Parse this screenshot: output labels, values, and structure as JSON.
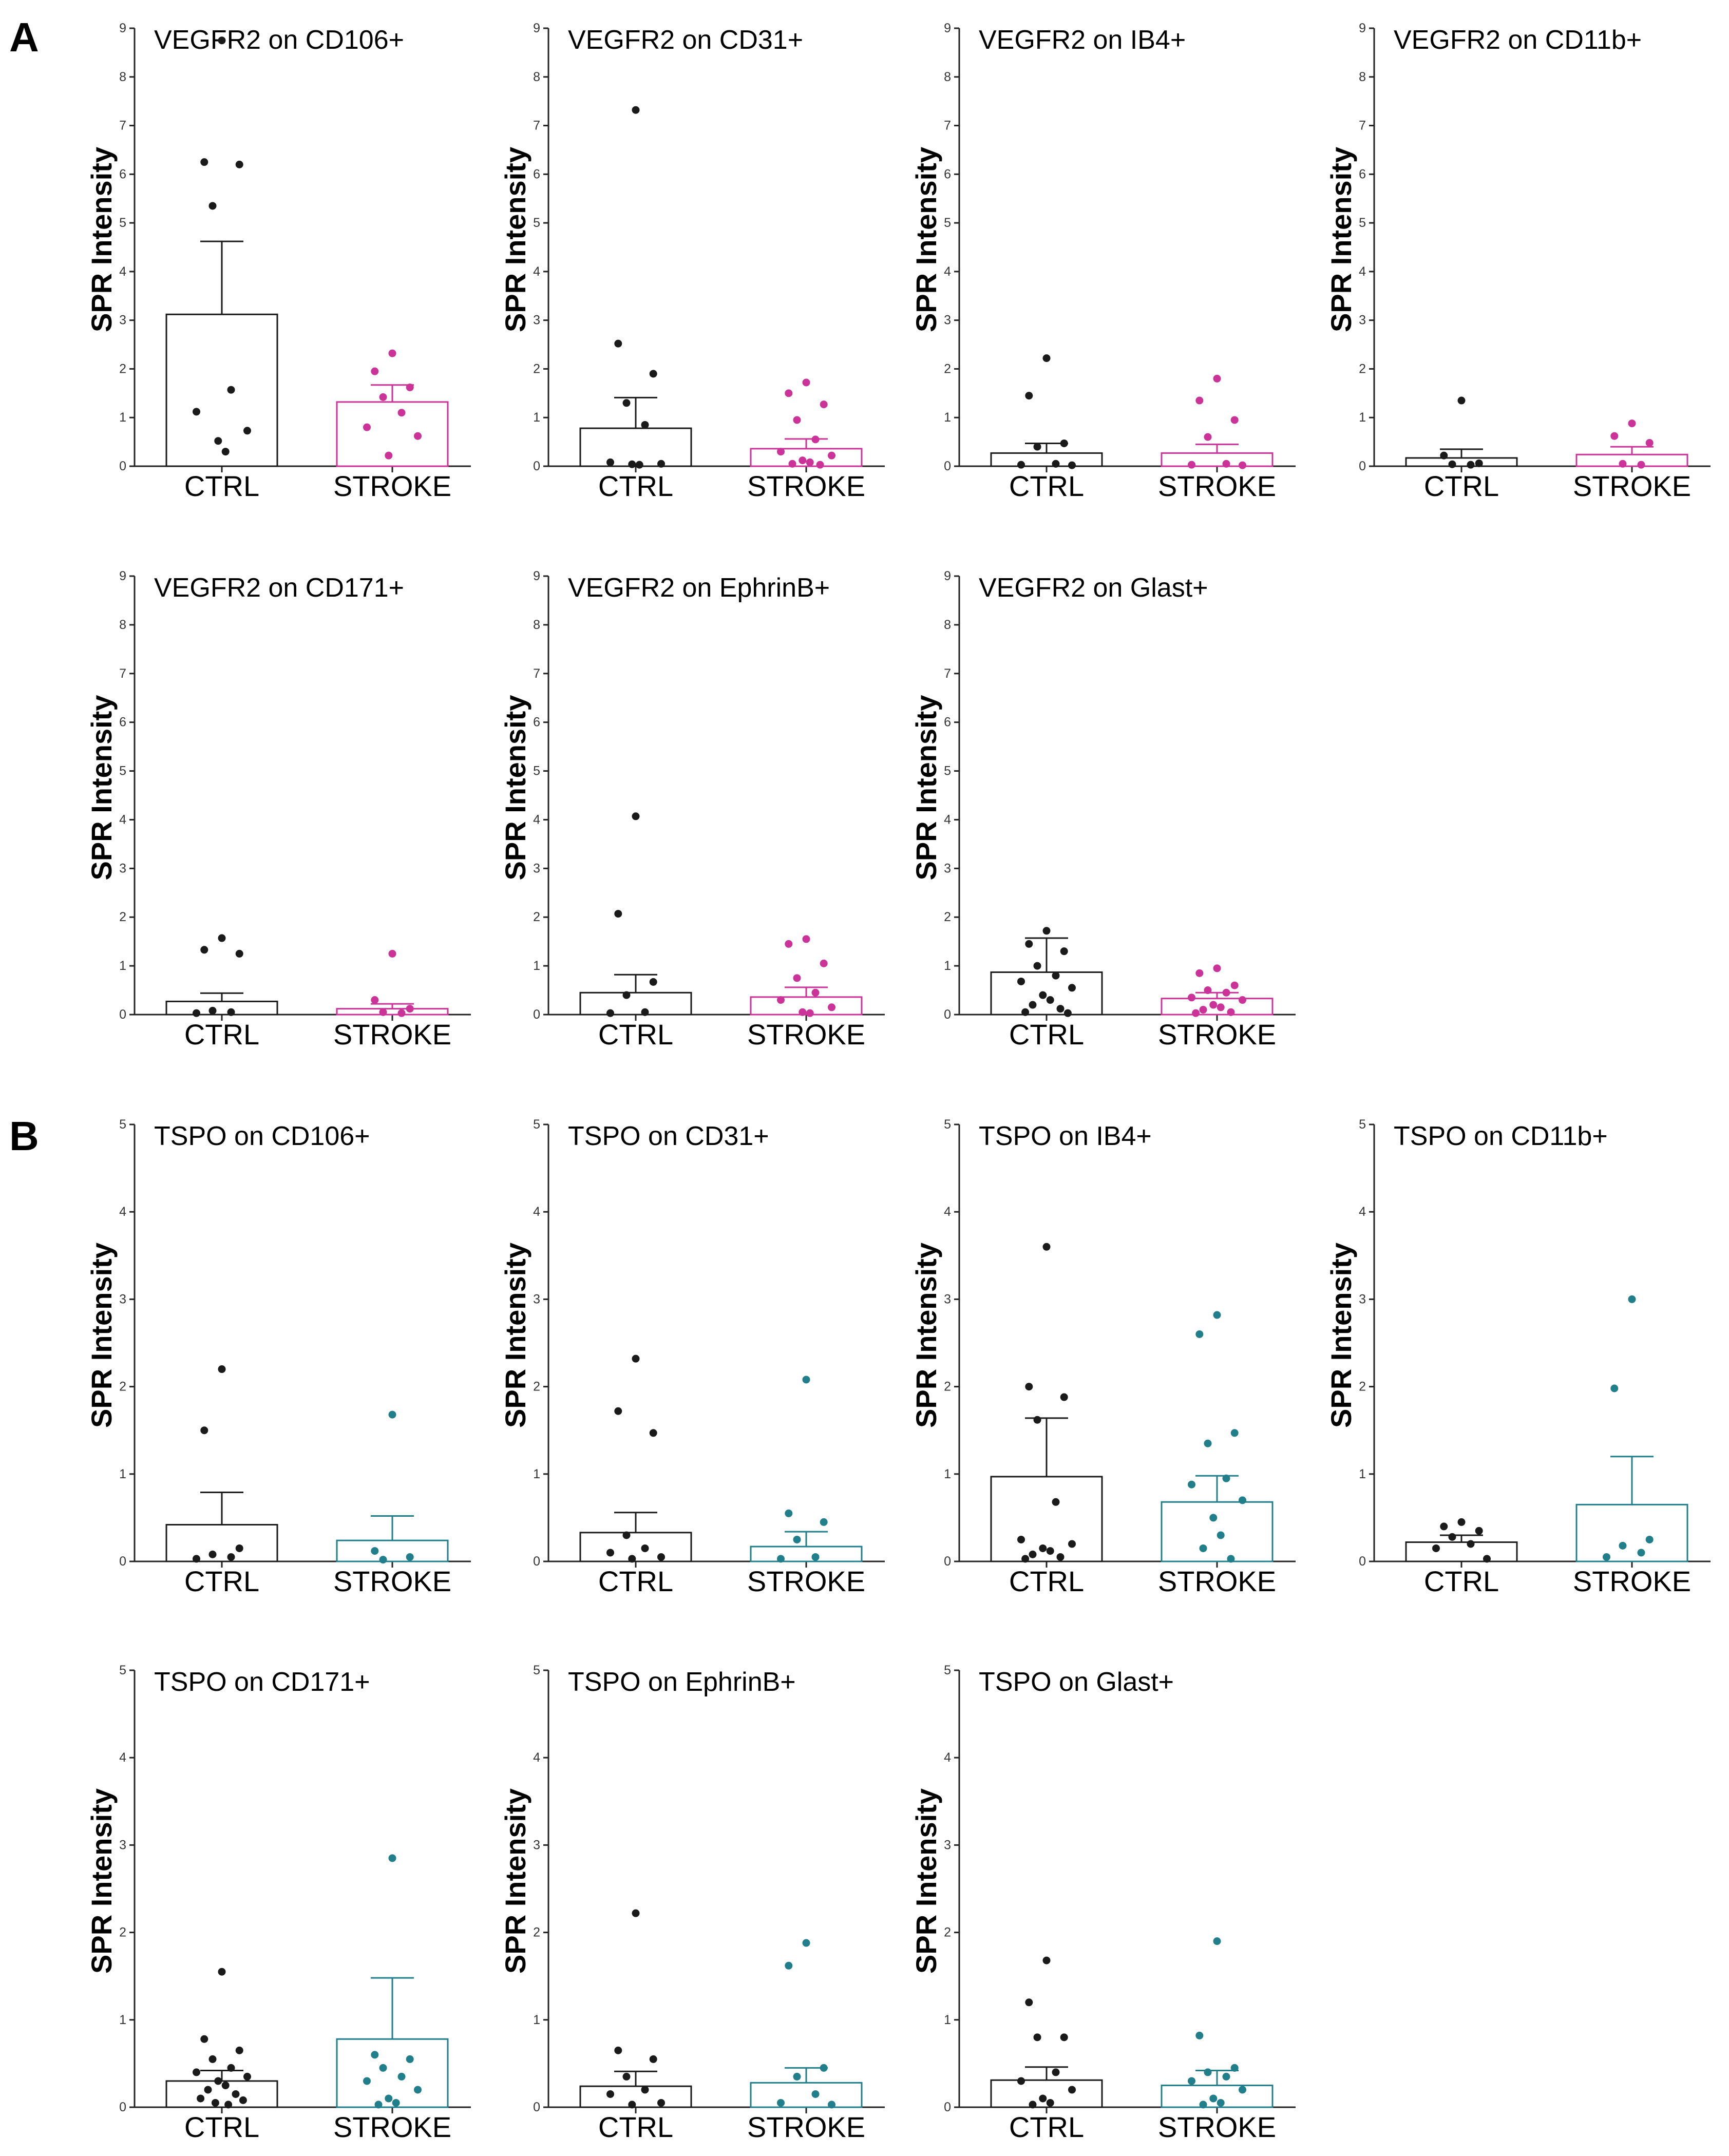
{
  "figure": {
    "panel_labels": [
      "A",
      "B"
    ],
    "colors": {
      "ctrl": "#1a1a1a",
      "vegfr2_stroke": "#cc3399",
      "tspo_stroke": "#217f8c",
      "axis": "#222222"
    }
  },
  "chart_data": [
    {
      "panel": "A",
      "type": "bar",
      "title": "VEGFR2 on CD106+",
      "ylabel": "SPR Intensity",
      "ylim": [
        0,
        9
      ],
      "yticks": [
        "0",
        "1",
        "2",
        "3",
        "4",
        "5",
        "6",
        "7",
        "8",
        "9"
      ],
      "categories": [
        "CTRL",
        "STROKE"
      ],
      "values": [
        3.12,
        1.32
      ],
      "errors": [
        1.5,
        0.35
      ],
      "points": [
        [
          8.75,
          6.25,
          6.2,
          5.35,
          1.57,
          1.12,
          0.73,
          0.52,
          0.3
        ],
        [
          2.32,
          1.95,
          1.62,
          1.42,
          1.1,
          0.8,
          0.62,
          0.22
        ]
      ]
    },
    {
      "panel": "A",
      "type": "bar",
      "title": "VEGFR2 on CD31+",
      "ylabel": "SPR Intensity",
      "ylim": [
        0,
        9
      ],
      "yticks": [
        "0",
        "1",
        "2",
        "3",
        "4",
        "5",
        "6",
        "7",
        "8",
        "9"
      ],
      "categories": [
        "CTRL",
        "STROKE"
      ],
      "values": [
        0.78,
        0.36
      ],
      "errors": [
        0.63,
        0.2
      ],
      "points": [
        [
          7.32,
          2.52,
          1.9,
          1.3,
          0.85,
          0.08,
          0.05,
          0.04,
          0.03
        ],
        [
          1.72,
          1.5,
          1.27,
          0.95,
          0.55,
          0.3,
          0.22,
          0.12,
          0.08,
          0.05,
          0.03
        ]
      ]
    },
    {
      "panel": "A",
      "type": "bar",
      "title": "VEGFR2 on IB4+",
      "ylabel": "SPR Intensity",
      "ylim": [
        0,
        9
      ],
      "yticks": [
        "0",
        "1",
        "2",
        "3",
        "4",
        "5",
        "6",
        "7",
        "8",
        "9"
      ],
      "categories": [
        "CTRL",
        "STROKE"
      ],
      "values": [
        0.27,
        0.27
      ],
      "errors": [
        0.2,
        0.18
      ],
      "points": [
        [
          2.22,
          1.45,
          0.47,
          0.4,
          0.05,
          0.03,
          0.02
        ],
        [
          1.8,
          1.35,
          0.95,
          0.6,
          0.05,
          0.03,
          0.02
        ]
      ]
    },
    {
      "panel": "A",
      "type": "bar",
      "title": "VEGFR2 on CD11b+",
      "ylabel": "SPR Intensity",
      "ylim": [
        0,
        9
      ],
      "yticks": [
        "0",
        "1",
        "2",
        "3",
        "4",
        "5",
        "6",
        "7",
        "8",
        "9"
      ],
      "categories": [
        "CTRL",
        "STROKE"
      ],
      "values": [
        0.17,
        0.24
      ],
      "errors": [
        0.18,
        0.16
      ],
      "points": [
        [
          1.35,
          0.22,
          0.06,
          0.04,
          0.03
        ],
        [
          0.88,
          0.62,
          0.48,
          0.05,
          0.03
        ]
      ]
    },
    {
      "panel": "A",
      "type": "bar",
      "title": "VEGFR2 on CD171+",
      "ylabel": "SPR Intensity",
      "ylim": [
        0,
        9
      ],
      "yticks": [
        "0",
        "1",
        "2",
        "3",
        "4",
        "5",
        "6",
        "7",
        "8",
        "9"
      ],
      "categories": [
        "CTRL",
        "STROKE"
      ],
      "values": [
        0.27,
        0.12
      ],
      "errors": [
        0.17,
        0.1
      ],
      "points": [
        [
          1.57,
          1.33,
          1.25,
          0.08,
          0.05,
          0.03
        ],
        [
          1.25,
          0.3,
          0.12,
          0.05,
          0.03
        ]
      ]
    },
    {
      "panel": "A",
      "type": "bar",
      "title": "VEGFR2 on EphrinB+",
      "ylabel": "SPR Intensity",
      "ylim": [
        0,
        9
      ],
      "yticks": [
        "0",
        "1",
        "2",
        "3",
        "4",
        "5",
        "6",
        "7",
        "8",
        "9"
      ],
      "categories": [
        "CTRL",
        "STROKE"
      ],
      "values": [
        0.45,
        0.36
      ],
      "errors": [
        0.37,
        0.2
      ],
      "points": [
        [
          4.07,
          2.07,
          0.67,
          0.4,
          0.05,
          0.03
        ],
        [
          1.55,
          1.45,
          1.05,
          0.75,
          0.45,
          0.3,
          0.15,
          0.05,
          0.03
        ]
      ]
    },
    {
      "panel": "A",
      "type": "bar",
      "title": "VEGFR2 on Glast+",
      "ylabel": "SPR Intensity",
      "ylim": [
        0,
        9
      ],
      "yticks": [
        "0",
        "1",
        "2",
        "3",
        "4",
        "5",
        "6",
        "7",
        "8",
        "9"
      ],
      "categories": [
        "CTRL",
        "STROKE"
      ],
      "values": [
        0.87,
        0.33
      ],
      "errors": [
        0.7,
        0.12
      ],
      "points": [
        [
          1.72,
          1.45,
          1.3,
          1.0,
          0.8,
          0.68,
          0.55,
          0.4,
          0.3,
          0.2,
          0.12,
          0.05,
          0.03
        ],
        [
          0.95,
          0.85,
          0.6,
          0.5,
          0.45,
          0.35,
          0.3,
          0.2,
          0.15,
          0.1,
          0.05,
          0.03
        ]
      ]
    },
    {
      "panel": "B",
      "type": "bar",
      "title": "TSPO on CD106+",
      "ylabel": "SPR Intensity",
      "ylim": [
        0,
        5
      ],
      "yticks": [
        "0",
        "1",
        "2",
        "3",
        "4",
        "5"
      ],
      "categories": [
        "CTRL",
        "STROKE"
      ],
      "values": [
        0.42,
        0.24
      ],
      "errors": [
        0.37,
        0.28
      ],
      "points": [
        [
          2.2,
          1.5,
          0.15,
          0.08,
          0.05,
          0.03
        ],
        [
          1.68,
          0.12,
          0.05,
          0.02
        ]
      ]
    },
    {
      "panel": "B",
      "type": "bar",
      "title": "TSPO on CD31+",
      "ylabel": "SPR Intensity",
      "ylim": [
        0,
        5
      ],
      "yticks": [
        "0",
        "1",
        "2",
        "3",
        "4",
        "5"
      ],
      "categories": [
        "CTRL",
        "STROKE"
      ],
      "values": [
        0.33,
        0.17
      ],
      "errors": [
        0.23,
        0.17
      ],
      "points": [
        [
          2.32,
          1.72,
          1.47,
          0.3,
          0.15,
          0.1,
          0.05,
          0.03
        ],
        [
          2.08,
          0.55,
          0.45,
          0.25,
          0.05,
          0.03
        ]
      ]
    },
    {
      "panel": "B",
      "type": "bar",
      "title": "TSPO on IB4+",
      "ylabel": "SPR Intensity",
      "ylim": [
        0,
        5
      ],
      "yticks": [
        "0",
        "1",
        "2",
        "3",
        "4",
        "5"
      ],
      "categories": [
        "CTRL",
        "STROKE"
      ],
      "values": [
        0.97,
        0.68
      ],
      "errors": [
        0.67,
        0.3
      ],
      "points": [
        [
          3.6,
          2.0,
          1.88,
          1.62,
          0.68,
          0.25,
          0.2,
          0.15,
          0.12,
          0.08,
          0.05,
          0.03
        ],
        [
          2.82,
          2.6,
          1.47,
          1.35,
          0.95,
          0.88,
          0.7,
          0.5,
          0.3,
          0.15,
          0.03
        ]
      ]
    },
    {
      "panel": "B",
      "type": "bar",
      "title": "TSPO on CD11b+",
      "ylabel": "SPR Intensity",
      "ylim": [
        0,
        5
      ],
      "yticks": [
        "0",
        "1",
        "2",
        "3",
        "4",
        "5"
      ],
      "categories": [
        "CTRL",
        "STROKE"
      ],
      "values": [
        0.22,
        0.65
      ],
      "errors": [
        0.08,
        0.55
      ],
      "points": [
        [
          0.45,
          0.4,
          0.35,
          0.28,
          0.2,
          0.15,
          0.03
        ],
        [
          3.0,
          1.98,
          0.25,
          0.18,
          0.1,
          0.05
        ]
      ]
    },
    {
      "panel": "B",
      "type": "bar",
      "title": "TSPO on CD171+",
      "ylabel": "SPR Intensity",
      "ylim": [
        0,
        5
      ],
      "yticks": [
        "0",
        "1",
        "2",
        "3",
        "4",
        "5"
      ],
      "categories": [
        "CTRL",
        "STROKE"
      ],
      "values": [
        0.3,
        0.78
      ],
      "errors": [
        0.12,
        0.7
      ],
      "points": [
        [
          1.55,
          0.78,
          0.65,
          0.55,
          0.45,
          0.4,
          0.35,
          0.3,
          0.25,
          0.2,
          0.15,
          0.1,
          0.08,
          0.05,
          0.03
        ],
        [
          2.85,
          0.6,
          0.55,
          0.45,
          0.35,
          0.3,
          0.2,
          0.1,
          0.05,
          0.03
        ]
      ]
    },
    {
      "panel": "B",
      "type": "bar",
      "title": "TSPO on EphrinB+",
      "ylabel": "SPR Intensity",
      "ylim": [
        0,
        5
      ],
      "yticks": [
        "0",
        "1",
        "2",
        "3",
        "4",
        "5"
      ],
      "categories": [
        "CTRL",
        "STROKE"
      ],
      "values": [
        0.24,
        0.28
      ],
      "errors": [
        0.17,
        0.17
      ],
      "points": [
        [
          2.22,
          0.65,
          0.55,
          0.35,
          0.2,
          0.15,
          0.05,
          0.03
        ],
        [
          1.88,
          1.62,
          0.45,
          0.35,
          0.15,
          0.05,
          0.03
        ]
      ]
    },
    {
      "panel": "B",
      "type": "bar",
      "title": "TSPO on Glast+",
      "ylabel": "SPR Intensity",
      "ylim": [
        0,
        5
      ],
      "yticks": [
        "0",
        "1",
        "2",
        "3",
        "4",
        "5"
      ],
      "categories": [
        "CTRL",
        "STROKE"
      ],
      "values": [
        0.31,
        0.25
      ],
      "errors": [
        0.15,
        0.17
      ],
      "points": [
        [
          1.68,
          1.2,
          0.8,
          0.8,
          0.4,
          0.3,
          0.2,
          0.1,
          0.05,
          0.03
        ],
        [
          1.9,
          0.82,
          0.45,
          0.4,
          0.35,
          0.3,
          0.2,
          0.1,
          0.05,
          0.03
        ]
      ]
    }
  ]
}
